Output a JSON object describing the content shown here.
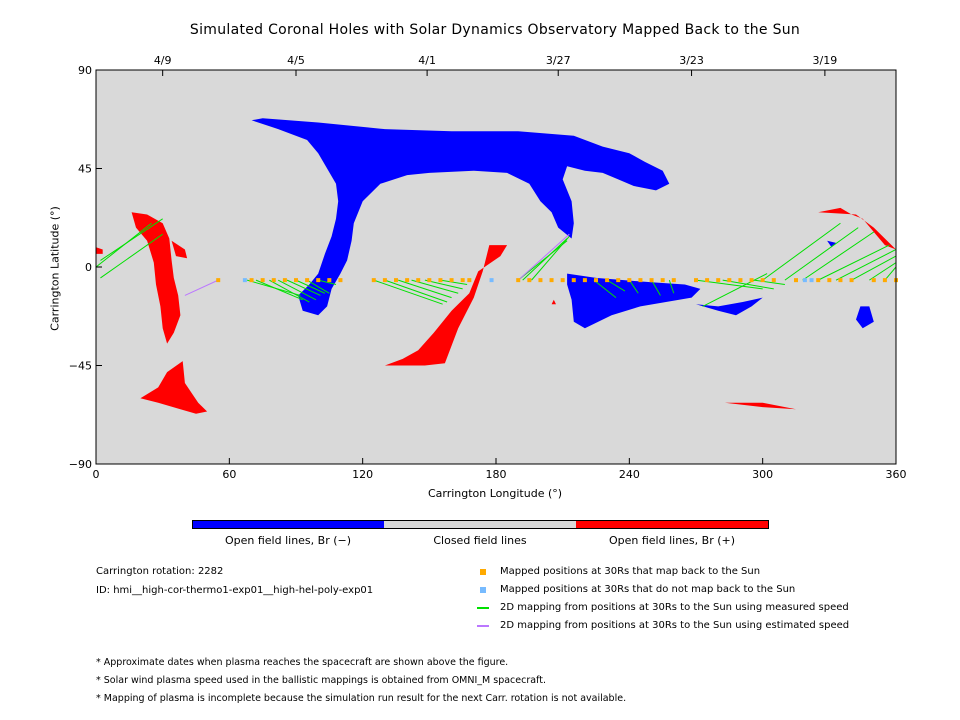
{
  "colors": {
    "open_neg": "#0000ff",
    "closed": "#d9d9d9",
    "open_pos": "#ff0000",
    "mapped": "#ffaa00",
    "not_mapped": "#77bbff",
    "measured": "#00e000",
    "estimated": "#bb77ff"
  },
  "chart_data": {
    "type": "scatter",
    "title": "Simulated Coronal Holes with Solar Dynamics Observatory Mapped Back to the Sun",
    "xlabel": "Carrington Longitude (°)",
    "ylabel": "Carrington Latitude (°)",
    "xlim": [
      0,
      360
    ],
    "ylim": [
      -90,
      90
    ],
    "x_ticks": [
      "0",
      "60",
      "120",
      "180",
      "240",
      "300",
      "360"
    ],
    "y_ticks": [
      "90",
      "45",
      "0",
      "−45",
      "−90"
    ],
    "top_axis_dates": [
      "4/9",
      "4/5",
      "4/1",
      "3/27",
      "3/23",
      "3/19"
    ],
    "top_axis_date_lon": [
      30,
      90,
      149,
      208,
      268,
      328
    ],
    "grid": false,
    "series": [
      {
        "name": "Mapped positions at 30Rs that map back to the Sun",
        "marker": "square",
        "x": [
          55,
          70,
          75,
          80,
          85,
          90,
          95,
          100,
          105,
          110,
          125,
          130,
          135,
          140,
          145,
          150,
          155,
          160,
          165,
          168,
          190,
          195,
          200,
          205,
          210,
          215,
          220,
          225,
          230,
          235,
          240,
          245,
          250,
          255,
          260,
          270,
          275,
          280,
          285,
          290,
          295,
          300,
          305,
          315,
          325,
          330,
          335,
          340,
          350,
          355,
          360
        ],
        "y": [
          -6,
          -6,
          -6,
          -6,
          -6,
          -6,
          -6,
          -6,
          -6,
          -6,
          -6,
          -6,
          -6,
          -6,
          -6,
          -6,
          -6,
          -6,
          -6,
          -6,
          -6,
          -6,
          -6,
          -6,
          -6,
          -6,
          -6,
          -6,
          -6,
          -6,
          -6,
          -6,
          -6,
          -6,
          -6,
          -6,
          -6,
          -6,
          -6,
          -6,
          -6,
          -6,
          -6,
          -6,
          -6,
          -6,
          -6,
          -6,
          -6,
          -6,
          -6
        ]
      },
      {
        "name": "Mapped positions at 30Rs that do not map back to the Sun",
        "marker": "square",
        "x": [
          67,
          178,
          319,
          322
        ],
        "y": [
          -6,
          -6,
          -6,
          -6
        ]
      },
      {
        "name": "2D mapping from positions at 30Rs to the Sun using measured speed",
        "type": "line"
      },
      {
        "name": "2D mapping from positions at 30Rs to the Sun using estimated speed",
        "type": "line"
      }
    ],
    "regions": [
      {
        "label": "Open field lines, Br (−)",
        "polarity": "negative",
        "polygons": [
          [
            [
              70,
              67
            ],
            [
              75,
              68
            ],
            [
              100,
              66
            ],
            [
              130,
              63
            ],
            [
              160,
              62
            ],
            [
              190,
              62
            ],
            [
              215,
              60
            ],
            [
              228,
              55
            ],
            [
              240,
              52
            ],
            [
              247,
              48
            ],
            [
              255,
              44
            ],
            [
              258,
              38
            ],
            [
              252,
              35
            ],
            [
              242,
              37
            ],
            [
              235,
              40
            ],
            [
              228,
              43
            ],
            [
              220,
              44
            ],
            [
              212,
              46
            ],
            [
              210,
              40
            ],
            [
              214,
              30
            ],
            [
              215,
              20
            ],
            [
              214,
              13
            ],
            [
              208,
              18
            ],
            [
              205,
              25
            ],
            [
              200,
              30
            ],
            [
              195,
              38
            ],
            [
              185,
              43
            ],
            [
              170,
              44
            ],
            [
              150,
              43
            ],
            [
              140,
              42
            ],
            [
              128,
              38
            ],
            [
              120,
              30
            ],
            [
              116,
              20
            ],
            [
              115,
              12
            ],
            [
              113,
              3
            ],
            [
              110,
              -3
            ],
            [
              106,
              -10
            ],
            [
              104,
              -18
            ],
            [
              100,
              -22
            ],
            [
              93,
              -20
            ],
            [
              91,
              -13
            ],
            [
              96,
              -8
            ],
            [
              100,
              -3
            ],
            [
              103,
              6
            ],
            [
              106,
              14
            ],
            [
              108,
              22
            ],
            [
              109,
              30
            ],
            [
              108,
              38
            ],
            [
              104,
              45
            ],
            [
              100,
              52
            ],
            [
              95,
              58
            ],
            [
              82,
              63
            ]
          ],
          [
            [
              212,
              -3
            ],
            [
              225,
              -5
            ],
            [
              250,
              -7
            ],
            [
              265,
              -8
            ],
            [
              272,
              -10
            ],
            [
              268,
              -14
            ],
            [
              245,
              -18
            ],
            [
              232,
              -22
            ],
            [
              220,
              -28
            ],
            [
              215,
              -25
            ],
            [
              214,
              -15
            ],
            [
              212,
              -8
            ]
          ],
          [
            [
              270,
              -17
            ],
            [
              280,
              -20
            ],
            [
              288,
              -22
            ],
            [
              295,
              -18
            ],
            [
              300,
              -14
            ],
            [
              291,
              -16
            ],
            [
              280,
              -18
            ]
          ],
          [
            [
              344,
              -18
            ],
            [
              348,
              -18
            ],
            [
              350,
              -25
            ],
            [
              345,
              -28
            ],
            [
              342,
              -24
            ]
          ],
          [
            [
              329,
              12
            ],
            [
              333,
              11
            ],
            [
              331,
              9
            ]
          ]
        ]
      },
      {
        "label": "Open field lines, Br (+)",
        "polarity": "positive",
        "polygons": [
          [
            [
              16,
              25
            ],
            [
              23,
              24
            ],
            [
              30,
              20
            ],
            [
              33,
              13
            ],
            [
              34,
              3
            ],
            [
              35,
              -5
            ],
            [
              37,
              -13
            ],
            [
              38,
              -22
            ],
            [
              35,
              -30
            ],
            [
              32,
              -35
            ],
            [
              30,
              -28
            ],
            [
              29,
              -18
            ],
            [
              27,
              -8
            ],
            [
              26,
              2
            ],
            [
              23,
              12
            ],
            [
              18,
              18
            ]
          ],
          [
            [
              34,
              12
            ],
            [
              40,
              8
            ],
            [
              41,
              4
            ],
            [
              36,
              5
            ]
          ],
          [
            [
              0,
              9
            ],
            [
              3,
              8
            ],
            [
              3,
              6
            ],
            [
              0,
              6
            ]
          ],
          [
            [
              20,
              -60
            ],
            [
              28,
              -55
            ],
            [
              32,
              -48
            ],
            [
              39,
              -43
            ],
            [
              40,
              -53
            ],
            [
              46,
              -62
            ],
            [
              50,
              -66
            ],
            [
              45,
              -67
            ],
            [
              38,
              -65
            ],
            [
              28,
              -62
            ]
          ],
          [
            [
              130,
              -45
            ],
            [
              148,
              -45
            ],
            [
              157,
              -44
            ],
            [
              163,
              -28
            ],
            [
              170,
              -14
            ],
            [
              174,
              -2
            ],
            [
              176,
              6
            ],
            [
              177,
              10
            ],
            [
              185,
              10
            ],
            [
              182,
              5
            ],
            [
              172,
              -2
            ],
            [
              168,
              -12
            ],
            [
              160,
              -20
            ],
            [
              152,
              -30
            ],
            [
              145,
              -38
            ],
            [
              138,
              -42
            ]
          ],
          [
            [
              325,
              25
            ],
            [
              335,
              27
            ],
            [
              340,
              24
            ],
            [
              345,
              22
            ],
            [
              350,
              16
            ],
            [
              355,
              10
            ],
            [
              360,
              8
            ],
            [
              356,
              12
            ],
            [
              350,
              18
            ],
            [
              342,
              24
            ]
          ],
          [
            [
              283,
              -62
            ],
            [
              300,
              -64
            ],
            [
              315,
              -65
            ],
            [
              300,
              -62
            ]
          ],
          [
            [
              206,
              -15
            ],
            [
              207,
              -17
            ],
            [
              205,
              -17
            ]
          ]
        ]
      }
    ],
    "mapping_lines_measured": [
      [
        [
          2,
          -5
        ],
        [
          30,
          15
        ]
      ],
      [
        [
          0,
          0
        ],
        [
          25,
          20
        ]
      ],
      [
        [
          2,
          3
        ],
        [
          30,
          22
        ]
      ],
      [
        [
          68,
          -6
        ],
        [
          92,
          -13
        ]
      ],
      [
        [
          72,
          -6
        ],
        [
          93,
          -15
        ]
      ],
      [
        [
          78,
          -6
        ],
        [
          96,
          -16
        ]
      ],
      [
        [
          82,
          -6
        ],
        [
          99,
          -15
        ]
      ],
      [
        [
          86,
          -6
        ],
        [
          101,
          -13
        ]
      ],
      [
        [
          90,
          -6
        ],
        [
          103,
          -12
        ]
      ],
      [
        [
          95,
          -6
        ],
        [
          105,
          -12
        ]
      ],
      [
        [
          100,
          -6
        ],
        [
          108,
          -8
        ]
      ],
      [
        [
          125,
          -6
        ],
        [
          156,
          -17
        ]
      ],
      [
        [
          130,
          -6
        ],
        [
          158,
          -16
        ]
      ],
      [
        [
          136,
          -6
        ],
        [
          160,
          -14
        ]
      ],
      [
        [
          142,
          -6
        ],
        [
          163,
          -12
        ]
      ],
      [
        [
          148,
          -6
        ],
        [
          165,
          -10
        ]
      ],
      [
        [
          155,
          -6
        ],
        [
          167,
          -8
        ]
      ],
      [
        [
          190,
          -6
        ],
        [
          212,
          12
        ]
      ],
      [
        [
          192,
          -6
        ],
        [
          212,
          13
        ]
      ],
      [
        [
          196,
          -6
        ],
        [
          213,
          14
        ]
      ],
      [
        [
          224,
          -6
        ],
        [
          234,
          -14
        ]
      ],
      [
        [
          230,
          -6
        ],
        [
          238,
          -11
        ]
      ],
      [
        [
          240,
          -6
        ],
        [
          244,
          -12
        ]
      ],
      [
        [
          250,
          -6
        ],
        [
          254,
          -13
        ]
      ],
      [
        [
          258,
          -6
        ],
        [
          260,
          -12
        ]
      ],
      [
        [
          270,
          -6
        ],
        [
          300,
          -10
        ]
      ],
      [
        [
          282,
          -6
        ],
        [
          305,
          -10
        ]
      ],
      [
        [
          296,
          -6
        ],
        [
          310,
          -8
        ]
      ],
      [
        [
          300,
          -6
        ],
        [
          335,
          20
        ]
      ],
      [
        [
          310,
          -6
        ],
        [
          343,
          18
        ]
      ],
      [
        [
          318,
          -6
        ],
        [
          350,
          16
        ]
      ],
      [
        [
          273,
          -18
        ],
        [
          302,
          -3
        ]
      ],
      [
        [
          325,
          -6
        ],
        [
          357,
          10
        ]
      ],
      [
        [
          333,
          -6
        ],
        [
          360,
          8
        ]
      ],
      [
        [
          340,
          -6
        ],
        [
          360,
          5
        ]
      ],
      [
        [
          348,
          -6
        ],
        [
          360,
          2
        ]
      ],
      [
        [
          355,
          -6
        ],
        [
          360,
          0
        ]
      ]
    ],
    "mapping_lines_estimated": [
      [
        [
          40,
          -13
        ],
        [
          55,
          -6
        ]
      ],
      [
        [
          190,
          -6
        ],
        [
          213,
          15
        ]
      ]
    ],
    "colorbar_labels": [
      "Open field lines, Br (−)",
      "Closed field lines",
      "Open field lines, Br (+)"
    ]
  },
  "info": {
    "rotation": "Carrington rotation: 2282",
    "id": "ID: hmi__high-cor-thermo1-exp01__high-hel-poly-exp01"
  },
  "notes": [
    "* Approximate dates when plasma reaches the spacecraft are shown above the figure.",
    "* Solar wind plasma speed used in the ballistic mappings is obtained from OMNI_M spacecraft.",
    "* Mapping of plasma is incomplete because the simulation run result for the next Carr. rotation is not available."
  ]
}
